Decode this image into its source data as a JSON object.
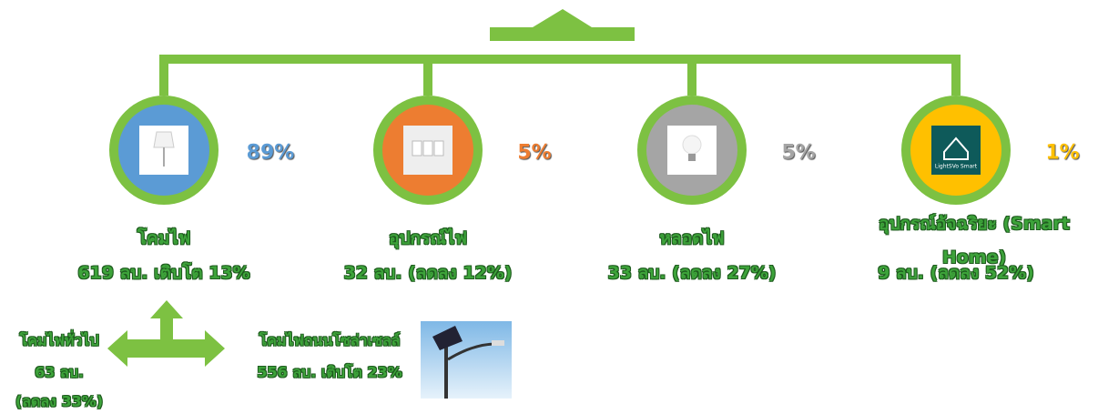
{
  "top_nodes": [
    {
      "label": "โคมไฟ",
      "share": "89%",
      "detail": "619 ลบ. เติบโต 13%"
    },
    {
      "label": "อุปกรณ์ไฟ",
      "share": "5%",
      "detail": "32 ลบ. (ลดลง 12%)"
    },
    {
      "label": "หลอดไฟ",
      "share": "5%",
      "detail": "33 ลบ. (ลดลง 27%)"
    },
    {
      "label": "อุปกรณ์อัจฉริยะ (Smart Home)",
      "share": "1%",
      "detail": "9 ลบ. (ลดลง 52%)",
      "icon_label": "LightSVo Smart"
    }
  ],
  "breakdown": {
    "left": {
      "label": "โคมไฟทั่วไป",
      "value": "63 ลบ.",
      "change": "(ลดลง 33%)"
    },
    "right": {
      "label": "โคมไฟถนนโซล่าเซลล์",
      "detail": "556 ลบ. เติบโต 23%"
    }
  }
}
